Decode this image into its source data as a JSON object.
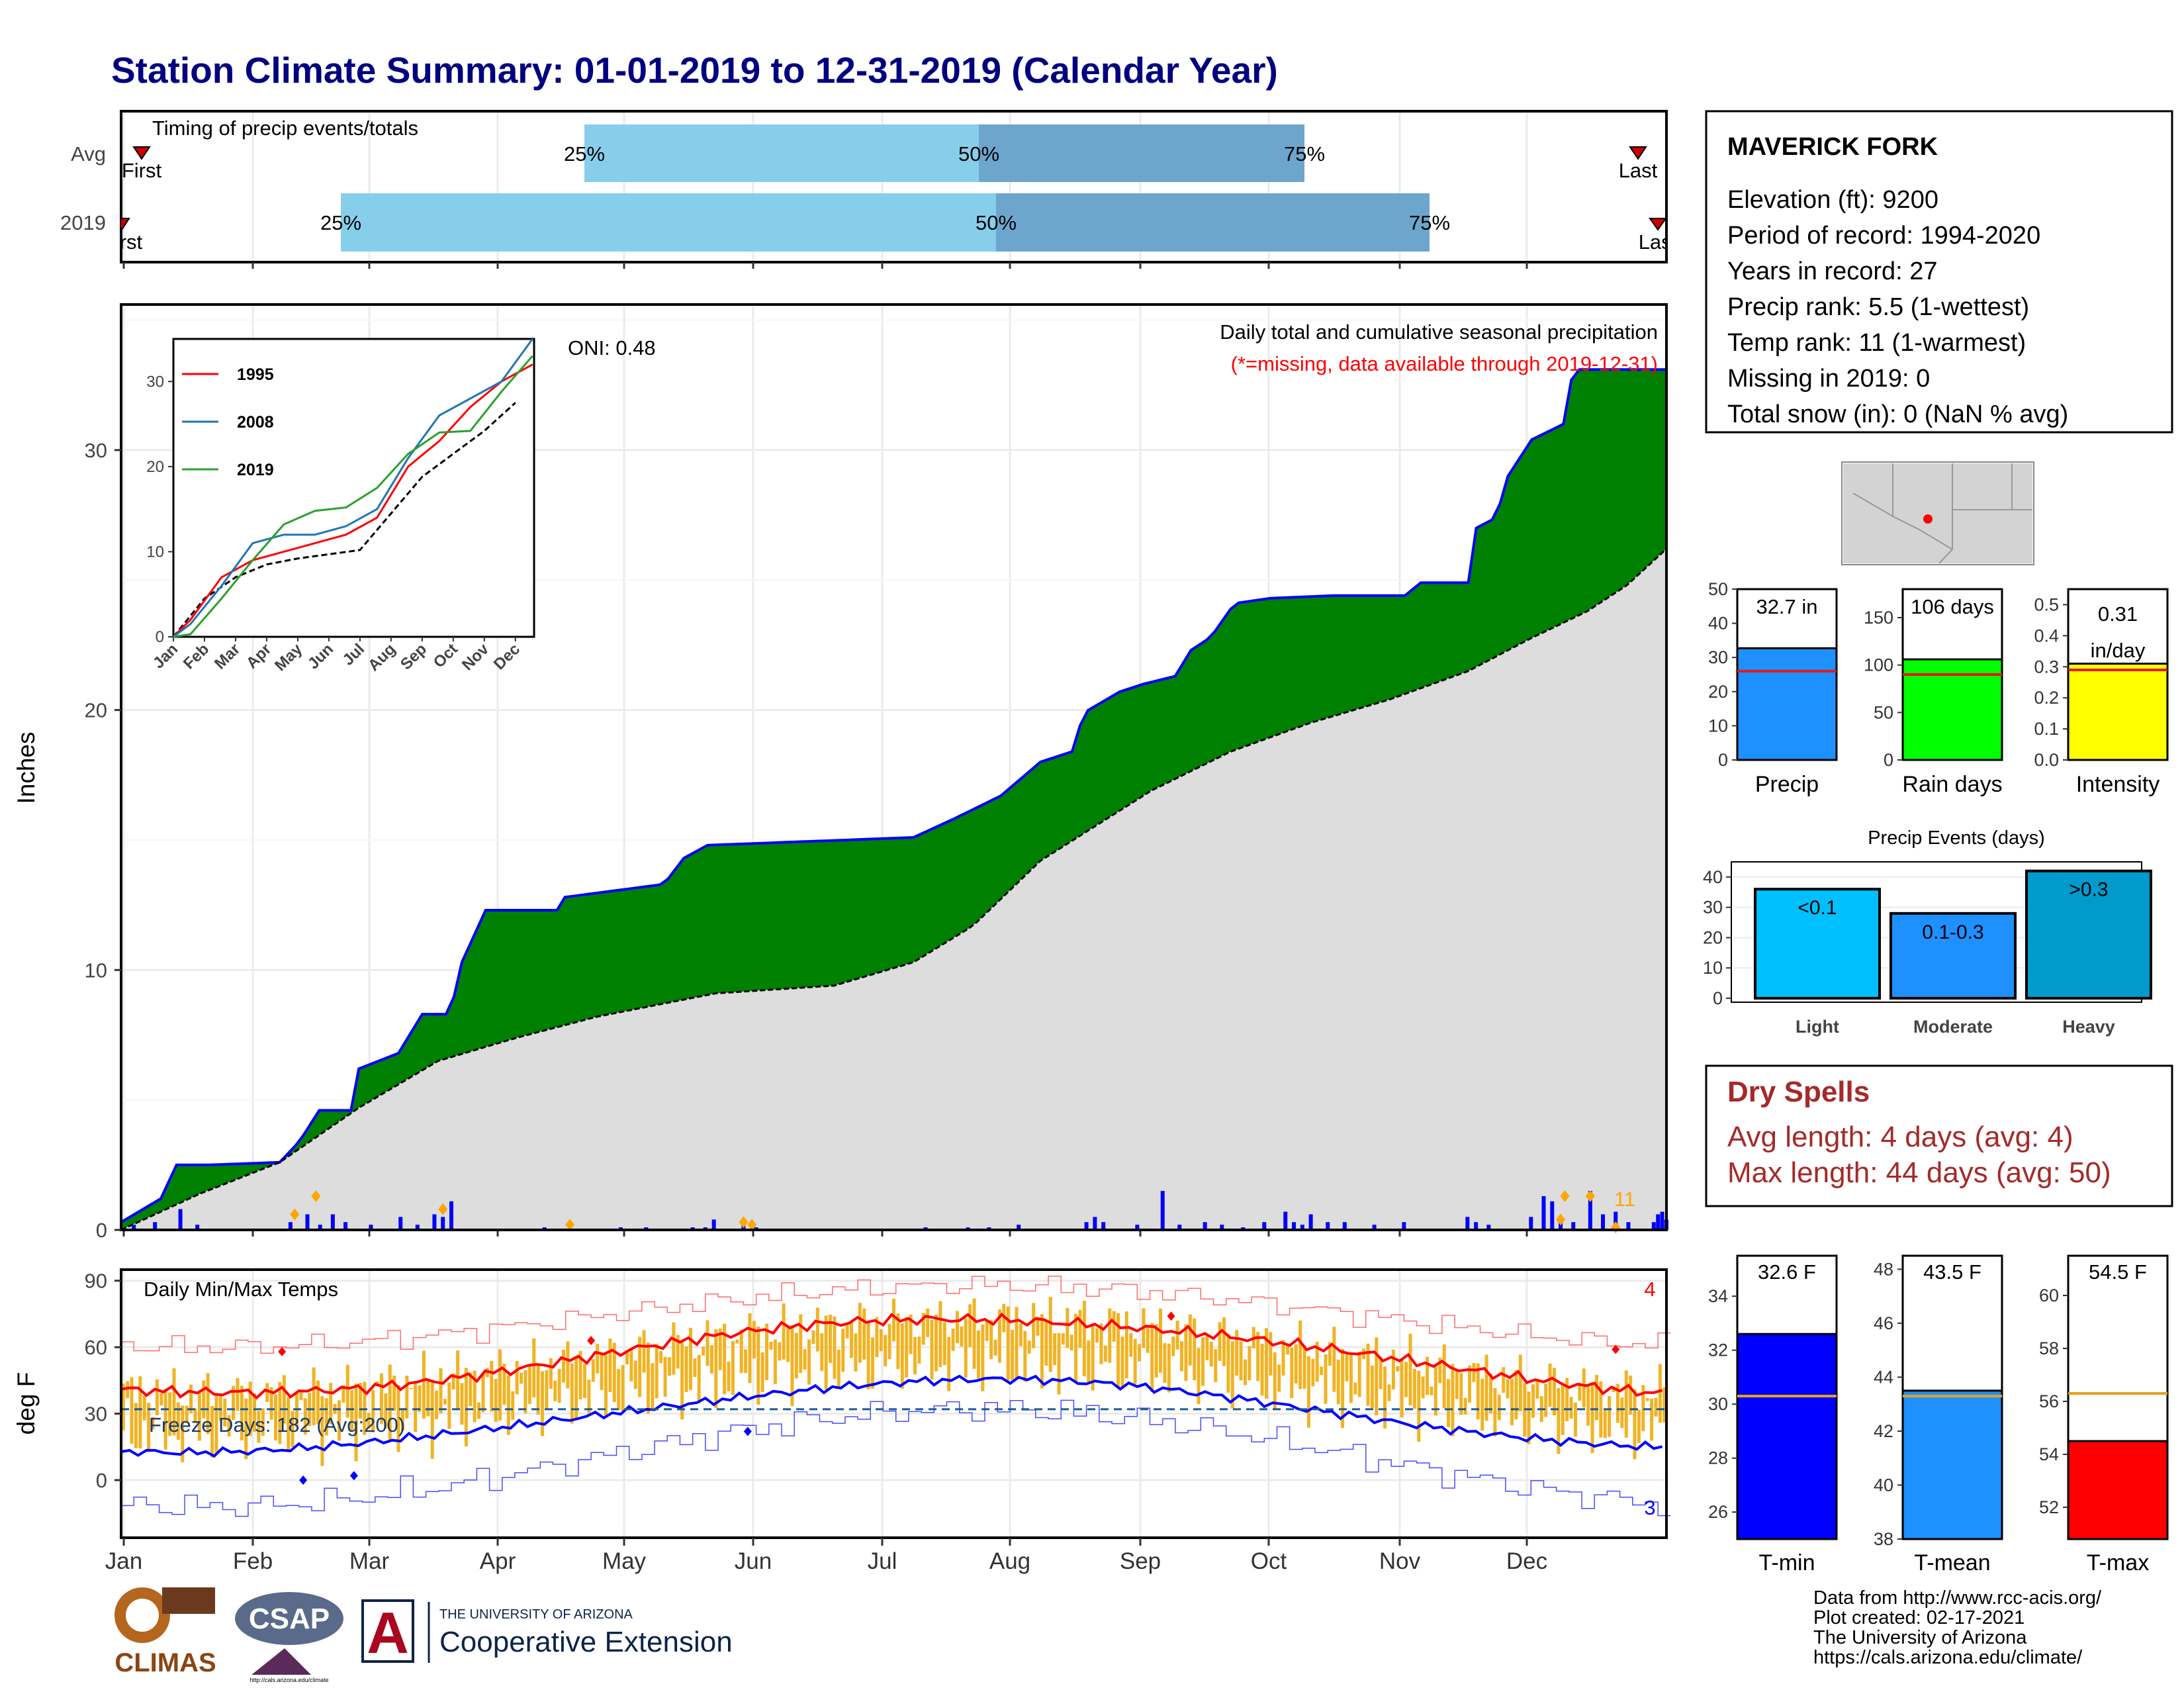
{
  "title": "Station Climate Summary: 01-01-2019 to 12-31-2019 (Calendar Year)",
  "colors": {
    "title": "#000080",
    "precip_fill": "#008000",
    "normal_fill": "#dddddd",
    "cumulative_line": "#0000ff",
    "quartile_light": "#87ceeb",
    "quartile_dark": "#6ca6cd",
    "tmax": "#ff0000",
    "tmin": "#0000ff",
    "range_bar": "#f0b323",
    "event_marker": "#ffa500",
    "dry_spell_text": "#a52a2a"
  },
  "timing": {
    "label": "Timing of precip events/totals",
    "rows": [
      "Avg",
      "2019"
    ],
    "first_label": "First",
    "last_label": "Last",
    "pct_labels": [
      "25%",
      "50%",
      "75%"
    ]
  },
  "months": [
    "Jan",
    "Feb",
    "Mar",
    "Apr",
    "May",
    "Jun",
    "Jul",
    "Aug",
    "Sep",
    "Oct",
    "Nov",
    "Dec"
  ],
  "precip_panel": {
    "y_label": "Inches",
    "y_ticks": [
      "0",
      "10",
      "20",
      "30"
    ],
    "subtitle": "Daily total and cumulative seasonal precipitation",
    "missing_note": "(*=missing, data available through 2019-12-31)",
    "oni": "ONI: 0.48",
    "event_count": "11"
  },
  "inset": {
    "series": [
      "1995",
      "2008",
      "2019"
    ],
    "y_ticks": [
      "0",
      "10",
      "20",
      "30"
    ]
  },
  "temp_panel": {
    "y_label": "deg F",
    "label": "Daily Min/Max Temps",
    "freeze": "Freeze Days: 182 (Avg:200)",
    "high_count": "4",
    "low_count": "3",
    "y_ticks": [
      "0",
      "30",
      "60",
      "90"
    ]
  },
  "station": {
    "name": "MAVERICK FORK",
    "lines": [
      "Elevation (ft): 9200",
      "Period of record: 1994-2020",
      "Years in record: 27",
      "Precip rank: 5.5 (1-wettest)",
      "Temp rank: 11 (1-warmest)",
      "Missing in 2019: 0",
      "Total snow (in): 0 (NaN % avg)"
    ]
  },
  "summary_bars": [
    {
      "label": "Precip",
      "value_text": "32.7 in",
      "value": 32.7,
      "avg": 26,
      "ymax": 50,
      "ticks": [
        "0",
        "10",
        "20",
        "30",
        "40",
        "50"
      ],
      "color": "#1e90ff"
    },
    {
      "label": "Rain days",
      "value_text": "106 days",
      "value": 106,
      "avg": 90,
      "ymax": 180,
      "ticks": [
        "0",
        "50",
        "100",
        "150"
      ],
      "color": "#00ff00"
    },
    {
      "label": "Intensity",
      "value_text": "0.31 in/day",
      "value": 0.31,
      "avg": 0.29,
      "ymax": 0.55,
      "ticks": [
        "0.0",
        "0.1",
        "0.2",
        "0.3",
        "0.4",
        "0.5"
      ],
      "color": "#ffff00"
    }
  ],
  "precip_events": {
    "title": "Precip Events (days)",
    "categories": [
      "Light",
      "Moderate",
      "Heavy"
    ],
    "bin_labels": [
      "<0.1",
      "0.1-0.3",
      ">0.3"
    ],
    "values": [
      36,
      28,
      42
    ],
    "ticks": [
      "0",
      "10",
      "20",
      "30",
      "40"
    ]
  },
  "dry_spells": {
    "title": "Dry Spells",
    "avg": "Avg length: 4 days (avg: 4)",
    "max": "Max length: 44 days (avg: 50)"
  },
  "temp_bars": [
    {
      "label": "T-min",
      "value_text": "32.6 F",
      "value": 32.6,
      "avg": 30.3,
      "ymin": 25,
      "ymax": 35.5,
      "ticks": [
        "26",
        "28",
        "30",
        "32",
        "34"
      ],
      "color": "#0000ff"
    },
    {
      "label": "T-mean",
      "value_text": "43.5 F",
      "value": 43.5,
      "avg": 43.3,
      "ymin": 38,
      "ymax": 48.5,
      "ticks": [
        "38",
        "40",
        "42",
        "44",
        "46",
        "48"
      ],
      "color": "#1e90ff"
    },
    {
      "label": "T-max",
      "value_text": "54.5 F",
      "value": 54.5,
      "avg": 56.3,
      "ymin": 50.8,
      "ymax": 61.5,
      "ticks": [
        "52",
        "54",
        "56",
        "58",
        "60"
      ],
      "color": "#ff0000"
    }
  ],
  "footer": {
    "lines": [
      "Data from http://www.rcc-acis.org/",
      "Plot created: 02-17-2021",
      "The University of Arizona",
      "https://cals.arizona.edu/climate/"
    ],
    "logo_climas": "CLIMAS",
    "logo_csap": "CSAP",
    "logo_csap_url": "http://cals.arizona.edu/climate",
    "ua_small": "THE UNIVERSITY OF ARIZONA",
    "ua_big": "Cooperative Extension"
  },
  "chart_data": [
    {
      "type": "bar",
      "title": "Timing of precip events/totals",
      "categories": [
        "Avg",
        "2019"
      ],
      "series": [
        {
          "name": "25%",
          "values": [
            0.3,
            0.145
          ]
        },
        {
          "name": "50%",
          "values": [
            0.555,
            0.565
          ]
        },
        {
          "name": "75%",
          "values": [
            0.77,
            0.85
          ]
        }
      ]
    },
    {
      "type": "area",
      "title": "Daily total and cumulative seasonal precipitation",
      "ylabel": "Inches",
      "x": [
        "Jan 1",
        "Jan 20",
        "Feb 1",
        "Feb 15",
        "Mar 1",
        "Mar 10",
        "Mar 25",
        "Apr 15",
        "May 1",
        "May 15",
        "Jun 15",
        "Jul 15",
        "Aug 1",
        "Aug 15",
        "Sep 1",
        "Sep 20",
        "Oct 1",
        "Oct 15",
        "Nov 1",
        "Nov 15",
        "Dec 1",
        "Dec 15",
        "Dec 31"
      ],
      "series": [
        {
          "name": "2019",
          "values": [
            0.3,
            2.5,
            2.6,
            4.6,
            6.5,
            10.0,
            12.3,
            12.9,
            13.2,
            14.8,
            15.0,
            15.8,
            17.5,
            20.0,
            21.5,
            23.0,
            23.7,
            24.2,
            24.2,
            24.8,
            29.0,
            31.0,
            33.0
          ]
        },
        {
          "name": "Average",
          "values": [
            0,
            1.5,
            2.5,
            3.5,
            4.8,
            5.8,
            7.0,
            7.8,
            8.4,
            8.8,
            9.2,
            9.6,
            12.5,
            15.0,
            17.5,
            18.8,
            19.4,
            20.3,
            21.3,
            22.3,
            23.3,
            24.4,
            26.3
          ]
        }
      ],
      "ylim": [
        0,
        36
      ]
    },
    {
      "type": "line",
      "title": "",
      "categories": [
        "Jan",
        "Feb",
        "Mar",
        "Apr",
        "May",
        "Jun",
        "Jul",
        "Aug",
        "Sep",
        "Oct",
        "Nov",
        "Dec"
      ],
      "series": [
        {
          "name": "1995",
          "values": [
            2,
            7,
            9,
            10,
            11,
            12,
            14,
            20,
            23,
            27,
            30,
            32
          ]
        },
        {
          "name": "2008",
          "values": [
            1.5,
            6,
            11,
            12,
            12,
            13,
            15,
            21,
            26,
            28,
            30,
            35
          ]
        },
        {
          "name": "2019",
          "values": [
            0.3,
            4.5,
            9,
            13.2,
            14.8,
            15.2,
            17.5,
            21.5,
            24,
            24.2,
            28.8,
            33
          ]
        }
      ],
      "ylim": [
        0,
        35
      ]
    },
    {
      "type": "line",
      "title": "Daily Min/Max Temps",
      "ylabel": "deg F",
      "categories": [
        "Jan",
        "Feb",
        "Mar",
        "Apr",
        "May",
        "Jun",
        "Jul",
        "Aug",
        "Sep",
        "Oct",
        "Nov",
        "Dec"
      ],
      "series": [
        {
          "name": "Avg Max",
          "values": [
            40,
            42,
            47,
            53,
            60,
            70,
            75,
            72,
            68,
            58,
            48,
            42
          ]
        },
        {
          "name": "Avg Min",
          "values": [
            14,
            15,
            19,
            25,
            32,
            42,
            46,
            45,
            40,
            32,
            25,
            18
          ]
        }
      ],
      "ylim": [
        -20,
        95
      ]
    },
    {
      "type": "bar",
      "title": "Precip Events (days)",
      "categories": [
        "Light",
        "Moderate",
        "Heavy"
      ],
      "values": [
        36,
        28,
        42
      ],
      "ylim": [
        0,
        45
      ]
    }
  ]
}
